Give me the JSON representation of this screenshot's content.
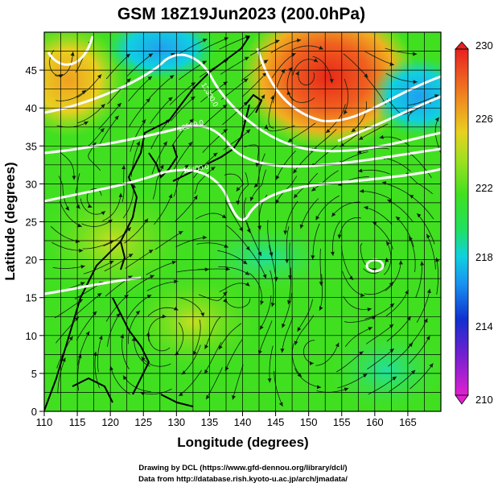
{
  "title": "GSM 18Z19Jun2023 (200.0hPa)",
  "xlabel": "Longitude (degrees)",
  "ylabel": "Latitude  (degrees)",
  "x_ticks": [
    "110",
    "115",
    "120",
    "125",
    "130",
    "135",
    "140",
    "145",
    "150",
    "155",
    "160",
    "165"
  ],
  "y_ticks": [
    "0",
    "5",
    "10",
    "15",
    "20",
    "25",
    "30",
    "35",
    "40",
    "45"
  ],
  "colorbar": {
    "labels": [
      "230",
      "226",
      "222",
      "218",
      "214",
      "210"
    ],
    "range": [
      210,
      230
    ],
    "colors": [
      "#dd20d0",
      "#2010d0",
      "#1890f0",
      "#10d0e0",
      "#20e040",
      "#50e020",
      "#c0e020",
      "#f0c020",
      "#f08020",
      "#e83020"
    ]
  },
  "contour_labels": [
    "12300.0",
    "12300.0",
    "12400.0"
  ],
  "credits": [
    "Drawing by DCL (https://www.gfd-dennou.org/library/dcl/)",
    "Data from http://database.rish.kyoto-u.ac.jp/arch/jmadata/"
  ],
  "map": {
    "lon_range": [
      110,
      170
    ],
    "lat_range": [
      0,
      50
    ],
    "field": "temperature",
    "field_units": "K"
  }
}
